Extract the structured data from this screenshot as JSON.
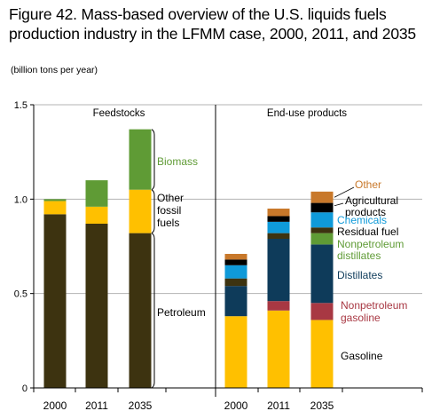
{
  "chart_data": {
    "type": "bar",
    "title": "Figure 42. Mass-based overview of the U.S. liquids fuels production industry in the LFMM case, 2000, 2011, and 2035",
    "subtitle": "(billion tons per year)",
    "ylim": [
      0,
      1.5
    ],
    "yticks": [
      {
        "value": 0,
        "label": "0"
      },
      {
        "value": 0.5,
        "label": "0.5"
      },
      {
        "value": 1.0,
        "label": "1.0"
      },
      {
        "value": 1.5,
        "label": "1.5"
      }
    ],
    "grid": true,
    "panels": [
      {
        "title": "Feedstocks",
        "categories": [
          "2000",
          "2011",
          "2035"
        ],
        "series": [
          {
            "name": "Petroleum",
            "color": "#3d3310",
            "values": [
              0.92,
              0.87,
              0.82
            ]
          },
          {
            "name": "Other fossil fuels",
            "color": "#ffc000",
            "values": [
              0.07,
              0.09,
              0.23
            ]
          },
          {
            "name": "Biomass",
            "color": "#5f9b35",
            "values": [
              0.01,
              0.14,
              0.32
            ]
          }
        ]
      },
      {
        "title": "End-use products",
        "categories": [
          "2000",
          "2011",
          "2035"
        ],
        "series": [
          {
            "name": "Gasoline",
            "color": "#ffc000",
            "values": [
              0.38,
              0.41,
              0.36
            ]
          },
          {
            "name": "Nonpetroleum gasoline",
            "color": "#a83843",
            "values": [
              0.0,
              0.05,
              0.09
            ]
          },
          {
            "name": "Distillates",
            "color": "#0e3b5a",
            "values": [
              0.16,
              0.33,
              0.31
            ]
          },
          {
            "name": "Nonpetroleum distillates",
            "color": "#5f9b35",
            "values": [
              0.0,
              0.0,
              0.06
            ]
          },
          {
            "name": "Residual fuel",
            "color": "#3d3310",
            "values": [
              0.04,
              0.03,
              0.03
            ]
          },
          {
            "name": "Chemicals",
            "color": "#0f9ad9",
            "values": [
              0.07,
              0.06,
              0.08
            ]
          },
          {
            "name": "Agricultural products",
            "color": "#000000",
            "values": [
              0.03,
              0.03,
              0.05
            ]
          },
          {
            "name": "Other",
            "color": "#c8782a",
            "values": [
              0.03,
              0.04,
              0.06
            ]
          }
        ]
      }
    ],
    "annotations": [
      {
        "text": "Biomass",
        "color": "#5f9b35"
      },
      {
        "text": "Other fossil fuels",
        "color": "#000000"
      },
      {
        "text": "Petroleum",
        "color": "#000000"
      },
      {
        "text": "Other",
        "color": "#c8782a"
      },
      {
        "text": "Agricultural products",
        "color": "#000000"
      },
      {
        "text": "Chemicals",
        "color": "#0f9ad9"
      },
      {
        "text": "Residual fuel",
        "color": "#000000"
      },
      {
        "text": "Nonpetroleum distillates",
        "color": "#5f9b35"
      },
      {
        "text": "Distillates",
        "color": "#0e3b5a"
      },
      {
        "text": "Nonpetroleum gasoline",
        "color": "#a83843"
      },
      {
        "text": "Gasoline",
        "color": "#000000"
      }
    ]
  }
}
